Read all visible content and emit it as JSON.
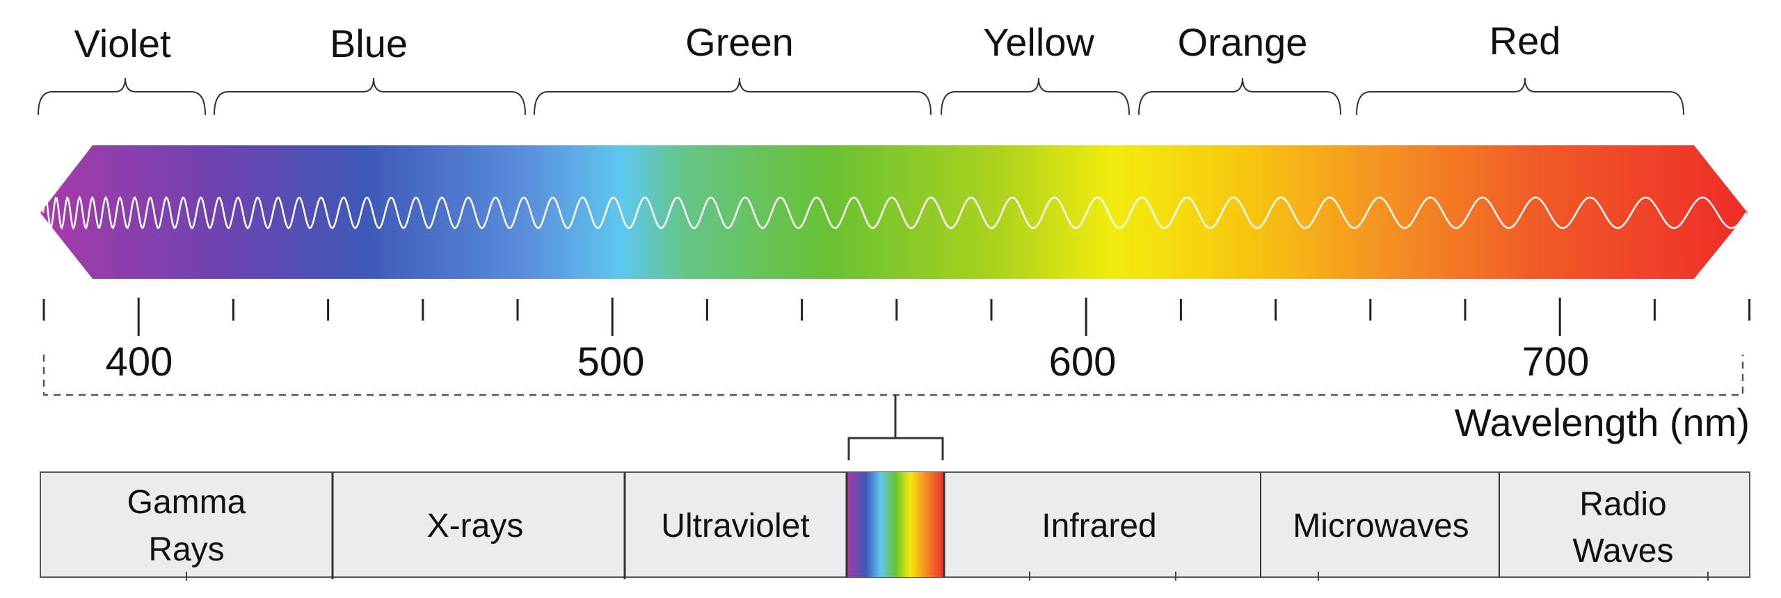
{
  "color_bands": [
    {
      "label": "Violet"
    },
    {
      "label": "Blue"
    },
    {
      "label": "Green"
    },
    {
      "label": "Yellow"
    },
    {
      "label": "Orange"
    },
    {
      "label": "Red"
    }
  ],
  "axis": {
    "tick_labels": [
      "400",
      "500",
      "600",
      "700"
    ],
    "title": "Wavelength (nm)"
  },
  "em_spectrum": {
    "segments": [
      {
        "line1": "Gamma",
        "line2": "Rays"
      },
      {
        "line1": "X-rays",
        "line2": ""
      },
      {
        "line1": "Ultraviolet",
        "line2": ""
      },
      {
        "line1": "",
        "line2": ""
      },
      {
        "line1": "Infrared",
        "line2": ""
      },
      {
        "line1": "Microwaves",
        "line2": ""
      },
      {
        "line1": "Radio",
        "line2": "Waves"
      }
    ]
  },
  "colors": {
    "violet": "#a83aa8",
    "blue": "#3f59b8",
    "cyan": "#5ec8ee",
    "green": "#68c133",
    "yellow": "#f2ec0e",
    "orange": "#f49422",
    "red": "#ee2a29",
    "panel_fill": "#ececec",
    "panel_border": "#555555"
  }
}
